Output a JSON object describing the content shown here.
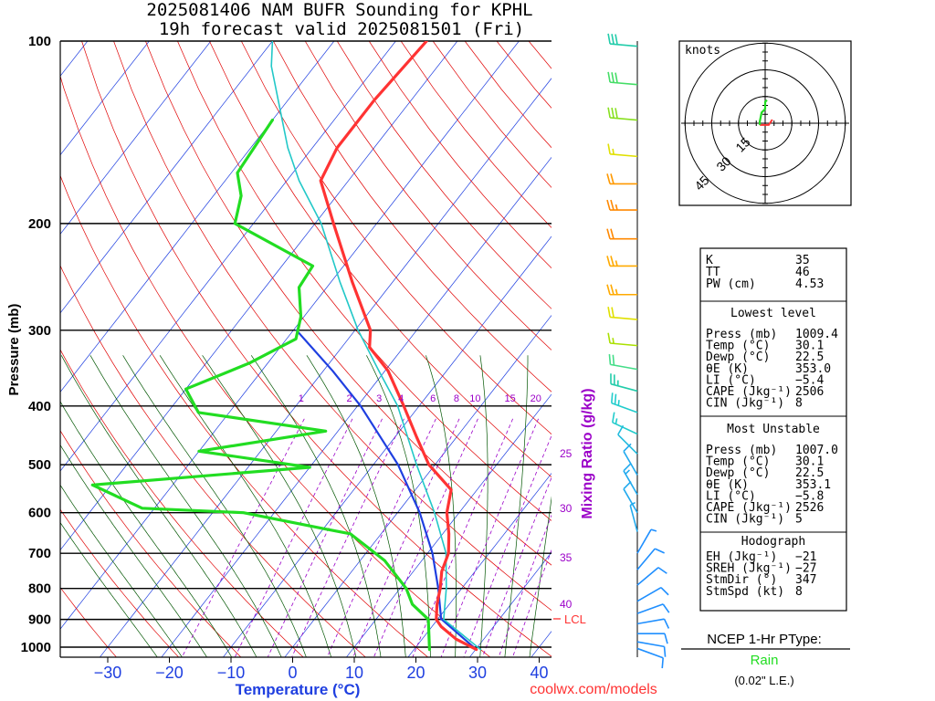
{
  "title_line1": "2025081406 NAM BUFR Sounding for KPHL",
  "title_line2": "19h forecast valid 2025081501 (Fri)",
  "credit": "coolwx.com/models",
  "colors": {
    "temp": "#ff3333",
    "dewpoint": "#22dd22",
    "parcel": "#1f3fe0",
    "virtual": "#22c8c8",
    "isotherm": "#1f3fe0",
    "dry_adiabat": "#e00000",
    "moist_adiabat": "#005500",
    "mixing_ratio": "#9b00c8",
    "axis_label": "#1f3fe0"
  },
  "chart_data": {
    "type": "skew-t",
    "ylabel": "Pressure (mb)",
    "xlabel": "Temperature (°C)",
    "xlim": [
      -38,
      42
    ],
    "ylim_mb": [
      1050,
      100
    ],
    "pressure_ticks": [
      1000,
      900,
      800,
      700,
      600,
      500,
      400,
      300,
      200,
      100
    ],
    "temperature_ticks": [
      -30,
      -20,
      -10,
      0,
      10,
      20,
      30,
      40
    ],
    "mixing_ratio_title": "Mixing Ratio (g/kg)",
    "mixing_ratio_labels_top": [
      "1",
      "2",
      "3",
      "4",
      "6",
      "8",
      "10",
      "15",
      "20"
    ],
    "mixing_ratio_labels_right": [
      "25",
      "30",
      "35",
      "40"
    ],
    "lcl_label": "LCL",
    "lcl_pressure_mb": 898,
    "temperature_profile": [
      {
        "p": 1009,
        "t": 30.1
      },
      {
        "p": 970,
        "t": 25.5
      },
      {
        "p": 925,
        "t": 21.5
      },
      {
        "p": 900,
        "t": 19.8
      },
      {
        "p": 850,
        "t": 18.0
      },
      {
        "p": 800,
        "t": 16.5
      },
      {
        "p": 750,
        "t": 14.6
      },
      {
        "p": 700,
        "t": 13.4
      },
      {
        "p": 650,
        "t": 11.0
      },
      {
        "p": 600,
        "t": 8.0
      },
      {
        "p": 550,
        "t": 5.8
      },
      {
        "p": 500,
        "t": -1.0
      },
      {
        "p": 450,
        "t": -6.5
      },
      {
        "p": 400,
        "t": -12.5
      },
      {
        "p": 350,
        "t": -19.5
      },
      {
        "p": 320,
        "t": -25.5
      },
      {
        "p": 300,
        "t": -27.5
      },
      {
        "p": 250,
        "t": -36.5
      },
      {
        "p": 200,
        "t": -47.0
      },
      {
        "p": 170,
        "t": -54.5
      },
      {
        "p": 150,
        "t": -56.0
      },
      {
        "p": 125,
        "t": -56.0
      },
      {
        "p": 100,
        "t": -55.0
      }
    ],
    "dewpoint_profile": [
      {
        "p": 1009,
        "t": 22.5
      },
      {
        "p": 900,
        "t": 18.5
      },
      {
        "p": 850,
        "t": 14.0
      },
      {
        "p": 800,
        "t": 11.0
      },
      {
        "p": 720,
        "t": 4.0
      },
      {
        "p": 650,
        "t": -5.0
      },
      {
        "p": 640,
        "t": -9.0
      },
      {
        "p": 600,
        "t": -25.0
      },
      {
        "p": 590,
        "t": -42.0
      },
      {
        "p": 540,
        "t": -53.0
      },
      {
        "p": 505,
        "t": -20.0
      },
      {
        "p": 475,
        "t": -40.0
      },
      {
        "p": 440,
        "t": -22.0
      },
      {
        "p": 410,
        "t": -45.0
      },
      {
        "p": 375,
        "t": -50.0
      },
      {
        "p": 340,
        "t": -43.0
      },
      {
        "p": 310,
        "t": -38.5
      },
      {
        "p": 285,
        "t": -40.5
      },
      {
        "p": 255,
        "t": -44.5
      },
      {
        "p": 235,
        "t": -45.0
      },
      {
        "p": 200,
        "t": -63.0
      },
      {
        "p": 180,
        "t": -65.5
      },
      {
        "p": 165,
        "t": -69.0
      },
      {
        "p": 135,
        "t": -70.0
      }
    ],
    "parcel_profile": [
      {
        "p": 1009,
        "t": 30.1
      },
      {
        "p": 898,
        "t": 20.5
      },
      {
        "p": 800,
        "t": 16.2
      },
      {
        "p": 700,
        "t": 10.8
      },
      {
        "p": 600,
        "t": 3.6
      },
      {
        "p": 500,
        "t": -6.0
      },
      {
        "p": 400,
        "t": -19.5
      },
      {
        "p": 350,
        "t": -28.5
      },
      {
        "p": 300,
        "t": -39.5
      }
    ],
    "virtual_temp_profile": [
      {
        "p": 1009,
        "t": 30.8
      },
      {
        "p": 900,
        "t": 21.0
      },
      {
        "p": 800,
        "t": 17.5
      },
      {
        "p": 700,
        "t": 13.0
      },
      {
        "p": 600,
        "t": 6.0
      },
      {
        "p": 500,
        "t": -3.0
      },
      {
        "p": 400,
        "t": -13.5
      },
      {
        "p": 350,
        "t": -21.0
      },
      {
        "p": 300,
        "t": -29.5
      },
      {
        "p": 250,
        "t": -38.5
      },
      {
        "p": 200,
        "t": -49.0
      },
      {
        "p": 170,
        "t": -58.0
      },
      {
        "p": 150,
        "t": -64.0
      },
      {
        "p": 130,
        "t": -70.0
      },
      {
        "p": 110,
        "t": -77.0
      },
      {
        "p": 100,
        "t": -80.0
      }
    ],
    "wind_barbs": [
      {
        "p": 102,
        "dir": 275,
        "spd": 30,
        "color": "#22ccaa"
      },
      {
        "p": 118,
        "dir": 275,
        "spd": 30,
        "color": "#44dd66"
      },
      {
        "p": 135,
        "dir": 275,
        "spd": 30,
        "color": "#88e020"
      },
      {
        "p": 155,
        "dir": 275,
        "spd": 15,
        "color": "#e0e000"
      },
      {
        "p": 172,
        "dir": 270,
        "spd": 20,
        "color": "#ff9900"
      },
      {
        "p": 190,
        "dir": 270,
        "spd": 25,
        "color": "#ff8800"
      },
      {
        "p": 212,
        "dir": 270,
        "spd": 20,
        "color": "#ff8800"
      },
      {
        "p": 235,
        "dir": 270,
        "spd": 25,
        "color": "#ffaa00"
      },
      {
        "p": 262,
        "dir": 270,
        "spd": 25,
        "color": "#ffaa00"
      },
      {
        "p": 288,
        "dir": 275,
        "spd": 20,
        "color": "#e0e000"
      },
      {
        "p": 318,
        "dir": 275,
        "spd": 15,
        "color": "#aae000"
      },
      {
        "p": 348,
        "dir": 280,
        "spd": 20,
        "color": "#44dd88"
      },
      {
        "p": 378,
        "dir": 285,
        "spd": 25,
        "color": "#22ccaa"
      },
      {
        "p": 410,
        "dir": 290,
        "spd": 25,
        "color": "#22cccc"
      },
      {
        "p": 445,
        "dir": 295,
        "spd": 15,
        "color": "#22cccc"
      },
      {
        "p": 480,
        "dir": 315,
        "spd": 10,
        "color": "#22bbdd"
      },
      {
        "p": 520,
        "dir": 330,
        "spd": 10,
        "color": "#22aaee"
      },
      {
        "p": 560,
        "dir": 330,
        "spd": 15,
        "color": "#22aaee"
      },
      {
        "p": 600,
        "dir": 330,
        "spd": 10,
        "color": "#22aaee"
      },
      {
        "p": 645,
        "dir": 345,
        "spd": 5,
        "color": "#22aaee"
      },
      {
        "p": 700,
        "dir": 30,
        "spd": 5,
        "color": "#1f8fff"
      },
      {
        "p": 745,
        "dir": 40,
        "spd": 10,
        "color": "#1f8fff"
      },
      {
        "p": 790,
        "dir": 50,
        "spd": 10,
        "color": "#1f8fff"
      },
      {
        "p": 840,
        "dir": 60,
        "spd": 10,
        "color": "#1f8fff"
      },
      {
        "p": 880,
        "dir": 70,
        "spd": 10,
        "color": "#1f8fff"
      },
      {
        "p": 915,
        "dir": 80,
        "spd": 10,
        "color": "#1f8fff"
      },
      {
        "p": 950,
        "dir": 90,
        "spd": 10,
        "color": "#1f8fff"
      },
      {
        "p": 980,
        "dir": 100,
        "spd": 10,
        "color": "#1f8fff"
      },
      {
        "p": 1005,
        "dir": 110,
        "spd": 10,
        "color": "#1f8fff"
      }
    ],
    "hodograph": {
      "units_label": "knots",
      "ring_labels": [
        "15",
        "30",
        "45"
      ],
      "ring_values_kt": [
        15,
        30,
        45
      ],
      "trace_kt": [
        [
          4,
          2
        ],
        [
          2,
          -1
        ],
        [
          -3,
          -1
        ],
        [
          -3,
          1
        ],
        [
          -2,
          6
        ],
        [
          0,
          8
        ],
        [
          0,
          12
        ],
        [
          1,
          13
        ]
      ]
    }
  },
  "indices_panel": {
    "general": [
      {
        "label": "K",
        "value": "35"
      },
      {
        "label": "TT",
        "value": "46"
      },
      {
        "label": "PW (cm)",
        "value": "4.53"
      }
    ],
    "lowest_level": {
      "header": "Lowest level",
      "rows": [
        {
          "label": "Press (mb)",
          "value": "1009.4"
        },
        {
          "label": "Temp (°C)",
          "value": "30.1"
        },
        {
          "label": "Dewp (°C)",
          "value": "22.5"
        },
        {
          "label": "θE (K)",
          "value": "353.0"
        },
        {
          "label": "LI (°C)",
          "value": "−5.4"
        },
        {
          "label": "CAPE (Jkg⁻¹)",
          "value": "2506"
        },
        {
          "label": "CIN (Jkg⁻¹)",
          "value": "8"
        }
      ]
    },
    "most_unstable": {
      "header": "Most Unstable",
      "rows": [
        {
          "label": "Press (mb)",
          "value": "1007.0"
        },
        {
          "label": "Temp (°C)",
          "value": "30.1"
        },
        {
          "label": "Dewp (°C)",
          "value": "22.5"
        },
        {
          "label": "θE (K)",
          "value": "353.1"
        },
        {
          "label": "LI (°C)",
          "value": "−5.8"
        },
        {
          "label": "CAPE (Jkg⁻¹)",
          "value": "2526"
        },
        {
          "label": "CIN (Jkg⁻¹)",
          "value": "5"
        }
      ]
    },
    "hodograph": {
      "header": "Hodograph",
      "rows": [
        {
          "label": "EH (Jkg⁻¹)",
          "value": "−21"
        },
        {
          "label": "SREH (Jkg⁻¹)",
          "value": "−27"
        },
        {
          "label": "StmDir (°)",
          "value": "347"
        },
        {
          "label": "StmSpd (kt)",
          "value": "8"
        }
      ]
    }
  },
  "ptype_panel": {
    "title": "NCEP 1-Hr PType:",
    "value": "Rain",
    "value_color": "#22dd22",
    "amount": "(0.02\" L.E.)"
  }
}
